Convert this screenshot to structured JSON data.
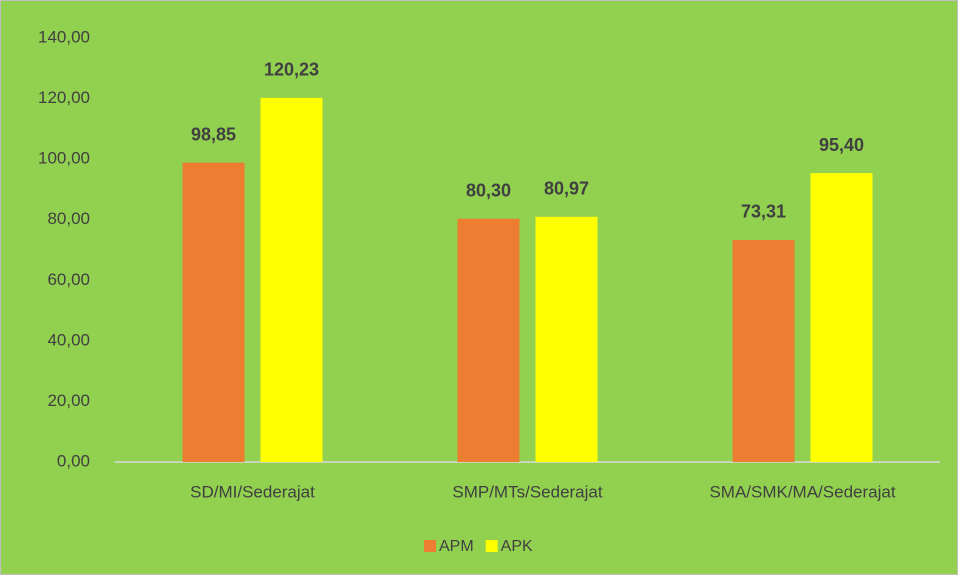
{
  "chart_data": {
    "type": "bar",
    "categories": [
      "SD/MI/Sederajat",
      "SMP/MTs/Sederajat",
      "SMA/SMK/MA/Sederajat"
    ],
    "series": [
      {
        "name": "APM",
        "color": "#ed7d31",
        "values": [
          98.85,
          80.3,
          73.31
        ],
        "value_labels": [
          "98,85",
          "80,30",
          "73,31"
        ]
      },
      {
        "name": "APK",
        "color": "#ffff00",
        "values": [
          120.23,
          80.97,
          95.4
        ],
        "value_labels": [
          "120,23",
          "80,97",
          "95,40"
        ]
      }
    ],
    "ylim": [
      0,
      140
    ],
    "yticks": [
      {
        "value": 0,
        "label": "0,00"
      },
      {
        "value": 20,
        "label": "20,00"
      },
      {
        "value": 40,
        "label": "40,00"
      },
      {
        "value": 60,
        "label": "60,00"
      },
      {
        "value": 80,
        "label": "80,00"
      },
      {
        "value": 100,
        "label": "100,00"
      },
      {
        "value": 120,
        "label": "120,00"
      },
      {
        "value": 140,
        "label": "140,00"
      }
    ],
    "grid": false,
    "legend": "bottom",
    "background": "#92d050"
  }
}
